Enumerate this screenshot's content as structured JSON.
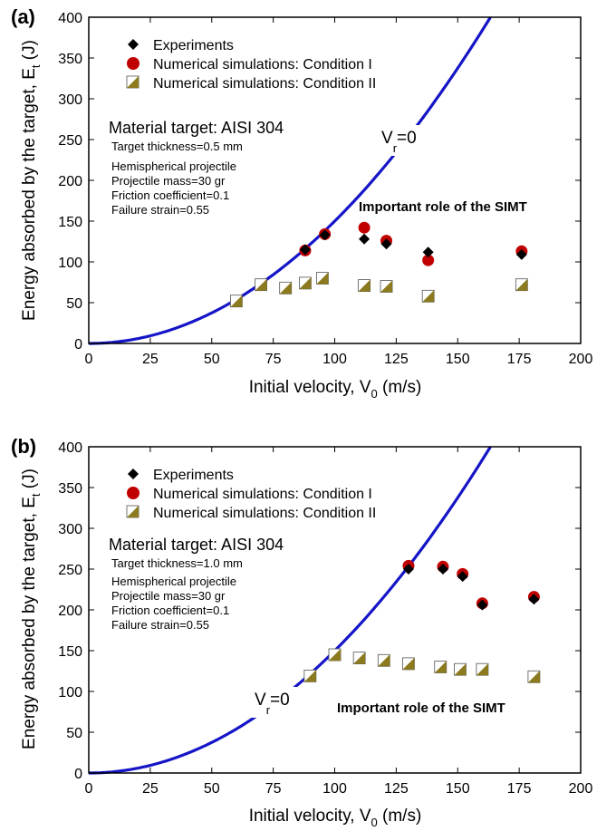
{
  "chart_data": [
    {
      "type": "scatter",
      "panel_label": "(a)",
      "xlabel": "Initial velocity, V",
      "xlabel_sub": "0",
      "xlabel_unit": " (m/s)",
      "ylabel": "Energy absorbed by the target, E",
      "ylabel_sub": "t",
      "ylabel_unit": " (J)",
      "xlim": [
        0,
        200
      ],
      "ylim": [
        0,
        400
      ],
      "xticks": [
        0,
        25,
        50,
        75,
        100,
        125,
        150,
        175,
        200
      ],
      "yticks": [
        0,
        50,
        100,
        150,
        200,
        250,
        300,
        350,
        400
      ],
      "curve": {
        "label_main": "V",
        "label_sub": "r",
        "label_tail": "=0",
        "color": "#1515c8",
        "coefficient": 0.015
      },
      "annotation": "Important role of the SIMT",
      "material_title": "Material target: AISI 304",
      "info_lines": [
        "Target thickness=0.5 mm",
        "Hemispherical projectile",
        "Projectile mass=30 gr",
        "Friction coefficient=0.1",
        "Failure strain=0.55"
      ],
      "legend": [
        "Experiments",
        "Numerical simulations: Condition I",
        "Numerical simulations: Condition II"
      ],
      "series": [
        {
          "name": "Experiments",
          "marker": "diamond",
          "color": "#000000",
          "points": [
            [
              88,
              115
            ],
            [
              96,
              133
            ],
            [
              112,
              128
            ],
            [
              121,
              122
            ],
            [
              138,
              112
            ],
            [
              176,
              109
            ]
          ]
        },
        {
          "name": "Numerical simulations: Condition I",
          "marker": "circle",
          "color": "#c00000",
          "points": [
            [
              88,
              114
            ],
            [
              96,
              134
            ],
            [
              112,
              142
            ],
            [
              121,
              126
            ],
            [
              138,
              102
            ],
            [
              176,
              113
            ]
          ]
        },
        {
          "name": "Numerical simulations: Condition II",
          "marker": "half-square",
          "color": "#8b7a1e",
          "points": [
            [
              60,
              52
            ],
            [
              70,
              72
            ],
            [
              80,
              68
            ],
            [
              88,
              74
            ],
            [
              95,
              80
            ],
            [
              112,
              71
            ],
            [
              121,
              70
            ],
            [
              138,
              58
            ],
            [
              176,
              72
            ]
          ]
        }
      ]
    },
    {
      "type": "scatter",
      "panel_label": "(b)",
      "xlabel": "Initial velocity, V",
      "xlabel_sub": "0",
      "xlabel_unit": " (m/s)",
      "ylabel": "Energy absorbed by the target, E",
      "ylabel_sub": "t",
      "ylabel_unit": " (J)",
      "xlim": [
        0,
        200
      ],
      "ylim": [
        0,
        400
      ],
      "xticks": [
        0,
        25,
        50,
        75,
        100,
        125,
        150,
        175,
        200
      ],
      "yticks": [
        0,
        50,
        100,
        150,
        200,
        250,
        300,
        350,
        400
      ],
      "curve": {
        "label_main": "V",
        "label_sub": "r",
        "label_tail": "=0",
        "color": "#1515c8",
        "coefficient": 0.015
      },
      "annotation": "Important role of the SIMT",
      "material_title": "Material target: AISI 304",
      "info_lines": [
        "Target thickness=1.0 mm",
        "Hemispherical projectile",
        "Projectile mass=30 gr",
        "Friction coefficient=0.1",
        "Failure strain=0.55"
      ],
      "legend": [
        "Experiments",
        "Numerical simulations: Condition I",
        "Numerical simulations: Condition II"
      ],
      "series": [
        {
          "name": "Experiments",
          "marker": "diamond",
          "color": "#000000",
          "points": [
            [
              130,
              250
            ],
            [
              144,
              250
            ],
            [
              152,
              241
            ],
            [
              160,
              206
            ],
            [
              181,
              213
            ]
          ]
        },
        {
          "name": "Numerical simulations: Condition I",
          "marker": "circle",
          "color": "#c00000",
          "points": [
            [
              130,
              254
            ],
            [
              144,
              253
            ],
            [
              152,
              244
            ],
            [
              160,
              208
            ],
            [
              181,
              216
            ]
          ]
        },
        {
          "name": "Numerical simulations: Condition II",
          "marker": "half-square",
          "color": "#8b7a1e",
          "points": [
            [
              90,
              119
            ],
            [
              100,
              145
            ],
            [
              110,
              141
            ],
            [
              120,
              138
            ],
            [
              130,
              134
            ],
            [
              143,
              130
            ],
            [
              151,
              127
            ],
            [
              160,
              127
            ],
            [
              181,
              118
            ]
          ]
        }
      ]
    }
  ]
}
